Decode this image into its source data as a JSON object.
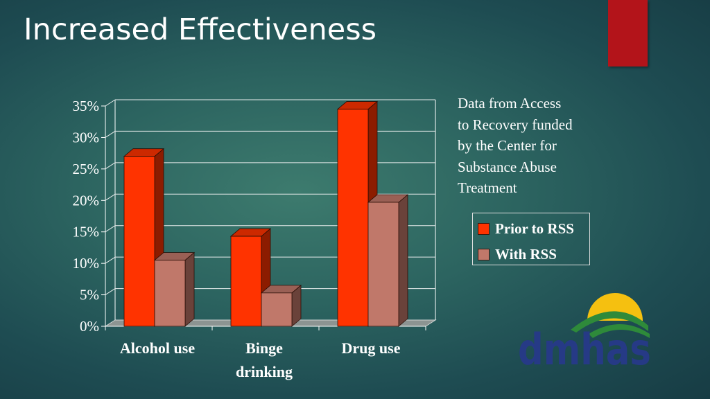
{
  "slide": {
    "title": "Increased Effectiveness",
    "note_lines": [
      "Data from Access",
      "to Recovery funded",
      "by the Center for",
      "Substance Abuse",
      "Treatment"
    ],
    "accent_color": "#b3141a",
    "logo": {
      "text": "dmhas",
      "icon": "sun-over-hills-icon"
    }
  },
  "chart_data": {
    "type": "bar",
    "style": "3d-clustered",
    "title": "",
    "xlabel": "",
    "ylabel": "",
    "categories": [
      [
        "Alcohol use"
      ],
      [
        "Binge",
        "drinking"
      ],
      [
        "Drug use"
      ]
    ],
    "series": [
      {
        "name": "Prior to RSS",
        "values": [
          27,
          14.3,
          34.5
        ],
        "color": "#ff3300"
      },
      {
        "name": "With RSS",
        "values": [
          10.5,
          5.3,
          19.7
        ],
        "color": "#c0786a"
      }
    ],
    "ylim": [
      0,
      35
    ],
    "yticks": [
      0,
      5,
      10,
      15,
      20,
      25,
      30,
      35
    ],
    "ytick_labels": [
      "0%",
      "5%",
      "10%",
      "15%",
      "20%",
      "25%",
      "30%",
      "35%"
    ],
    "grid": true,
    "legend": "right"
  }
}
